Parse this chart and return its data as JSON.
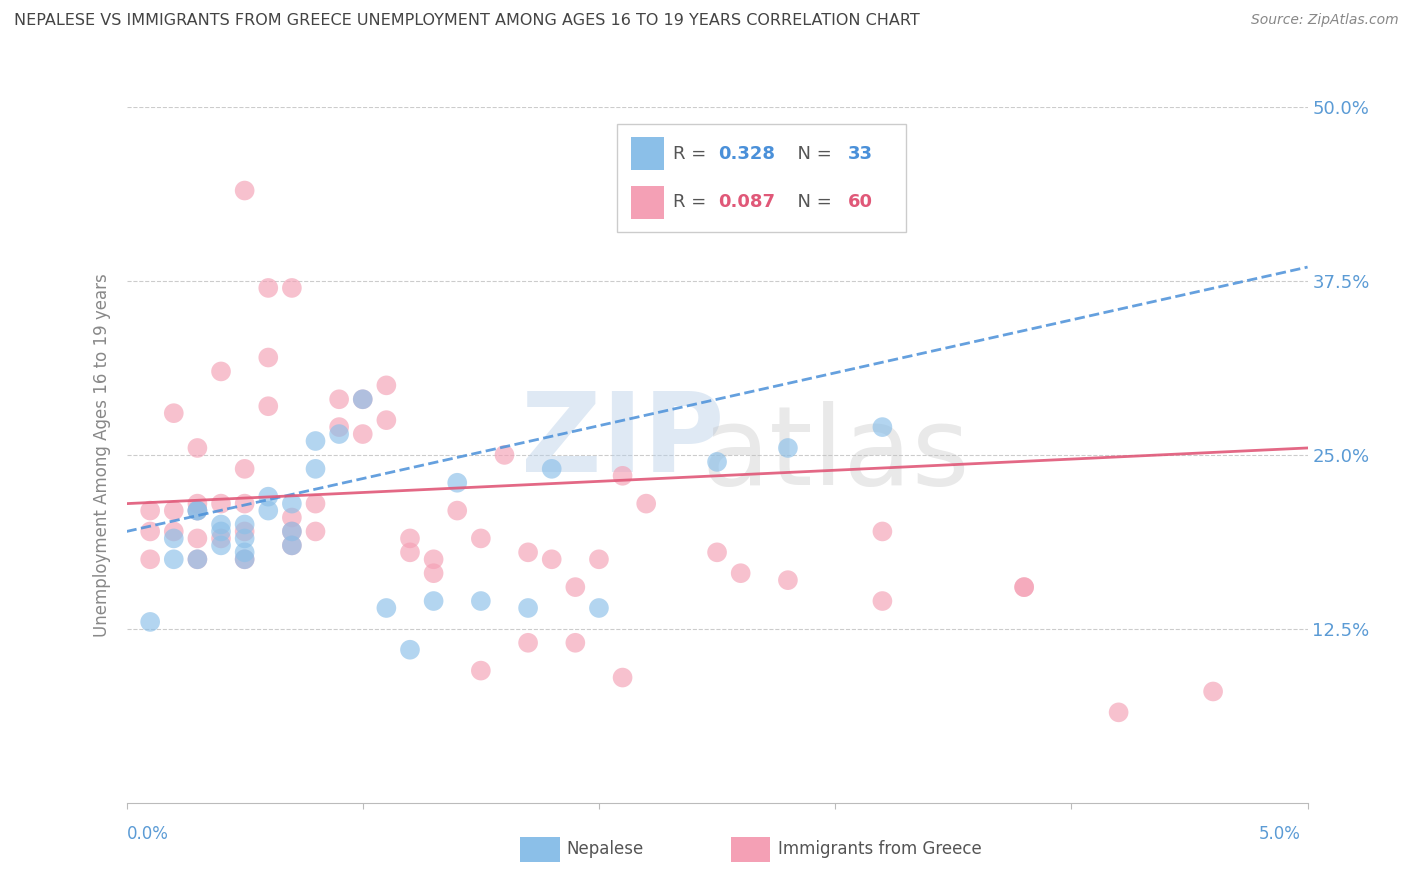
{
  "title": "NEPALESE VS IMMIGRANTS FROM GREECE UNEMPLOYMENT AMONG AGES 16 TO 19 YEARS CORRELATION CHART",
  "source": "Source: ZipAtlas.com",
  "ylabel": "Unemployment Among Ages 16 to 19 years",
  "x_min": 0.0,
  "x_max": 0.05,
  "y_min": 0.0,
  "y_max": 0.5,
  "yticks": [
    0.0,
    0.125,
    0.25,
    0.375,
    0.5
  ],
  "ytick_labels": [
    "",
    "12.5%",
    "25.0%",
    "37.5%",
    "50.0%"
  ],
  "legend_blue_R": "0.328",
  "legend_blue_N": "33",
  "legend_pink_R": "0.087",
  "legend_pink_N": "60",
  "color_blue": "#8bbfe8",
  "color_pink": "#f4a0b5",
  "color_line_blue": "#4a90d9",
  "color_line_pink": "#e05878",
  "color_axis_labels": "#5b9bd5",
  "color_title": "#444444",
  "nepalese_x": [
    0.001,
    0.002,
    0.002,
    0.003,
    0.003,
    0.003,
    0.004,
    0.004,
    0.004,
    0.005,
    0.005,
    0.005,
    0.005,
    0.006,
    0.006,
    0.007,
    0.007,
    0.007,
    0.008,
    0.008,
    0.009,
    0.01,
    0.011,
    0.012,
    0.013,
    0.014,
    0.015,
    0.017,
    0.018,
    0.02,
    0.025,
    0.028,
    0.032
  ],
  "nepalese_y": [
    0.13,
    0.175,
    0.19,
    0.21,
    0.175,
    0.21,
    0.185,
    0.2,
    0.195,
    0.19,
    0.2,
    0.175,
    0.18,
    0.22,
    0.21,
    0.195,
    0.215,
    0.185,
    0.24,
    0.26,
    0.265,
    0.29,
    0.14,
    0.11,
    0.145,
    0.23,
    0.145,
    0.14,
    0.24,
    0.14,
    0.245,
    0.255,
    0.27
  ],
  "greece_x": [
    0.001,
    0.001,
    0.001,
    0.002,
    0.002,
    0.002,
    0.003,
    0.003,
    0.003,
    0.003,
    0.003,
    0.004,
    0.004,
    0.004,
    0.005,
    0.005,
    0.005,
    0.005,
    0.006,
    0.006,
    0.007,
    0.007,
    0.007,
    0.008,
    0.008,
    0.009,
    0.009,
    0.01,
    0.01,
    0.011,
    0.011,
    0.012,
    0.012,
    0.013,
    0.013,
    0.014,
    0.015,
    0.016,
    0.017,
    0.018,
    0.019,
    0.02,
    0.021,
    0.022,
    0.025,
    0.026,
    0.028,
    0.032,
    0.038,
    0.042,
    0.005,
    0.006,
    0.007,
    0.015,
    0.017,
    0.019,
    0.021,
    0.032,
    0.038,
    0.046
  ],
  "greece_y": [
    0.21,
    0.195,
    0.175,
    0.28,
    0.195,
    0.21,
    0.255,
    0.215,
    0.21,
    0.19,
    0.175,
    0.31,
    0.215,
    0.19,
    0.215,
    0.24,
    0.195,
    0.175,
    0.285,
    0.32,
    0.185,
    0.195,
    0.205,
    0.215,
    0.195,
    0.29,
    0.27,
    0.29,
    0.265,
    0.3,
    0.275,
    0.19,
    0.18,
    0.175,
    0.165,
    0.21,
    0.19,
    0.25,
    0.18,
    0.175,
    0.155,
    0.175,
    0.09,
    0.215,
    0.18,
    0.165,
    0.16,
    0.145,
    0.155,
    0.065,
    0.44,
    0.37,
    0.37,
    0.095,
    0.115,
    0.115,
    0.235,
    0.195,
    0.155,
    0.08
  ],
  "blue_line_x0": 0.0,
  "blue_line_y0": 0.195,
  "blue_line_x1": 0.05,
  "blue_line_y1": 0.385,
  "pink_line_x0": 0.0,
  "pink_line_y0": 0.215,
  "pink_line_x1": 0.05,
  "pink_line_y1": 0.255
}
